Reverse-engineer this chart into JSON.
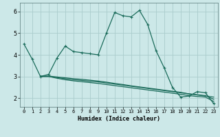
{
  "xlabel": "Humidex (Indice chaleur)",
  "bg_color": "#cce8e8",
  "grid_color": "#aacccc",
  "line_color": "#1a6b5a",
  "xlim": [
    -0.5,
    23.5
  ],
  "ylim": [
    1.6,
    6.4
  ],
  "xticks": [
    0,
    1,
    2,
    3,
    4,
    5,
    6,
    7,
    8,
    9,
    10,
    11,
    12,
    13,
    14,
    15,
    16,
    17,
    18,
    19,
    20,
    21,
    22,
    23
  ],
  "yticks": [
    2,
    3,
    4,
    5,
    6
  ],
  "series1_x": [
    0,
    1,
    2,
    3,
    4,
    5,
    6,
    7,
    8,
    9,
    10,
    11,
    12,
    13,
    14,
    15,
    16,
    17,
    18,
    19,
    20,
    21,
    22,
    23
  ],
  "series1_y": [
    4.5,
    3.8,
    3.0,
    3.1,
    3.85,
    4.4,
    4.15,
    4.1,
    4.05,
    4.0,
    5.0,
    5.95,
    5.8,
    5.75,
    6.05,
    5.4,
    4.2,
    3.4,
    2.5,
    2.05,
    2.1,
    2.3,
    2.25,
    1.75
  ],
  "series2_x": [
    2,
    3,
    4,
    5,
    6,
    7,
    8,
    9,
    10,
    11,
    12,
    13,
    14,
    15,
    16,
    17,
    18,
    19,
    20,
    21,
    22,
    23
  ],
  "series2_y": [
    3.0,
    3.0,
    2.95,
    2.9,
    2.85,
    2.82,
    2.78,
    2.75,
    2.7,
    2.65,
    2.6,
    2.55,
    2.5,
    2.45,
    2.4,
    2.35,
    2.3,
    2.25,
    2.2,
    2.15,
    2.1,
    2.05
  ],
  "series3_x": [
    2,
    3,
    4,
    5,
    6,
    7,
    8,
    9,
    10,
    11,
    12,
    13,
    14,
    15,
    16,
    17,
    18,
    19,
    20,
    21,
    22,
    23
  ],
  "series3_y": [
    3.0,
    3.0,
    2.92,
    2.85,
    2.8,
    2.76,
    2.72,
    2.68,
    2.63,
    2.58,
    2.53,
    2.48,
    2.43,
    2.38,
    2.33,
    2.28,
    2.23,
    2.18,
    2.12,
    2.08,
    2.05,
    1.85
  ],
  "series4_x": [
    2,
    3,
    4,
    5,
    6,
    7,
    8,
    9,
    10,
    11,
    12,
    13,
    14,
    15,
    16,
    17,
    18,
    19,
    20,
    21,
    22,
    23
  ],
  "series4_y": [
    3.02,
    3.02,
    2.98,
    2.94,
    2.9,
    2.87,
    2.83,
    2.79,
    2.74,
    2.68,
    2.63,
    2.57,
    2.52,
    2.47,
    2.42,
    2.37,
    2.32,
    2.27,
    2.2,
    2.16,
    2.12,
    1.95
  ]
}
